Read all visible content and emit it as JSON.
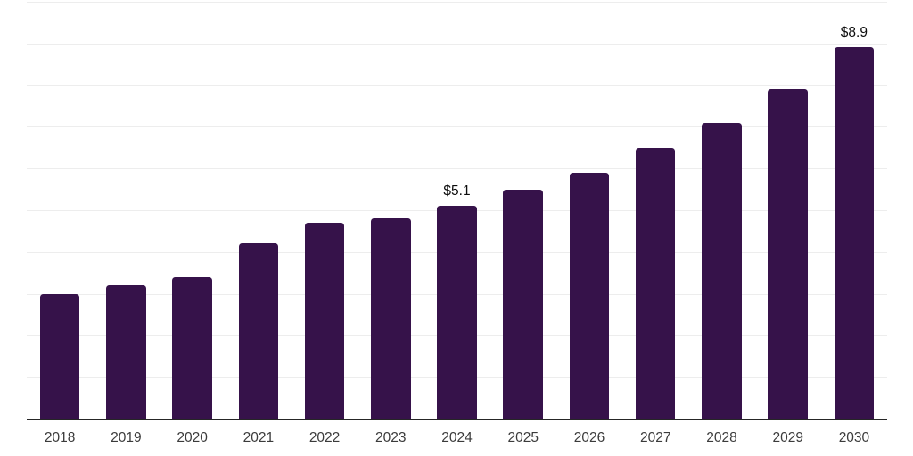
{
  "chart_data": {
    "type": "bar",
    "title": "",
    "xlabel": "",
    "ylabel": "",
    "categories": [
      "2018",
      "2019",
      "2020",
      "2021",
      "2022",
      "2023",
      "2024",
      "2025",
      "2026",
      "2027",
      "2028",
      "2029",
      "2030"
    ],
    "values": [
      3.0,
      3.2,
      3.4,
      4.2,
      4.7,
      4.8,
      5.1,
      5.5,
      5.9,
      6.5,
      7.1,
      7.9,
      8.9
    ],
    "data_labels": [
      null,
      null,
      null,
      null,
      null,
      null,
      "$5.1",
      null,
      null,
      null,
      null,
      null,
      "$8.9"
    ],
    "ylim": [
      0,
      10
    ],
    "gridline_interval": 1,
    "grid": true,
    "legend": "none",
    "colors": {
      "bar": "#36124a",
      "gridline": "#ededed",
      "axis_line": "#262626",
      "category_label": "#3b3b3b",
      "value_label": "#0d0d0d",
      "background": "#ffffff"
    }
  }
}
